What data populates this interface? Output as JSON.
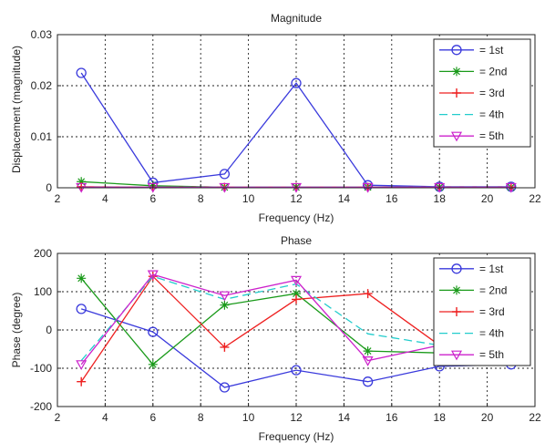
{
  "chart_data": [
    {
      "type": "line",
      "title": "Magnitude",
      "xlabel": "Frequency (Hz)",
      "ylabel": "Displacement (magnitude)",
      "xlim": [
        2,
        22
      ],
      "ylim": [
        0,
        0.03
      ],
      "xticks": [
        2,
        4,
        6,
        8,
        10,
        12,
        14,
        16,
        18,
        20,
        22
      ],
      "yticks": [
        0,
        0.01,
        0.02,
        0.03
      ],
      "xtick_labels": [
        "2",
        "4",
        "6",
        "8",
        "10",
        "12",
        "14",
        "16",
        "18",
        "20",
        "22"
      ],
      "ytick_labels": [
        "0",
        "0.01",
        "0.02",
        "0.03"
      ],
      "grid": true,
      "legend_position": "top-right",
      "series": [
        {
          "name": "= 1st",
          "color": "#3a3adc",
          "marker": "circle",
          "dash": "",
          "x": [
            3,
            6,
            9,
            12,
            15,
            18,
            21
          ],
          "y": [
            0.0225,
            0.001,
            0.0027,
            0.0205,
            0.0005,
            0.0002,
            0.0002
          ]
        },
        {
          "name": "= 2nd",
          "color": "#1a9a1a",
          "marker": "star",
          "dash": "",
          "x": [
            3,
            6,
            9,
            12,
            15,
            18,
            21
          ],
          "y": [
            0.0012,
            0.0004,
            0.0001,
            0.0001,
            0.0001,
            0.0001,
            0.0001
          ]
        },
        {
          "name": "= 3rd",
          "color": "#ee2020",
          "marker": "plus",
          "dash": "",
          "x": [
            3,
            6,
            9,
            12,
            15,
            18,
            21
          ],
          "y": [
            0.0002,
            0.0001,
            0.0001,
            0.0001,
            0.0001,
            0.0001,
            0.0001
          ]
        },
        {
          "name": "= 4th",
          "color": "#22cccc",
          "marker": "none",
          "dash": "9,5",
          "x": [
            3,
            6,
            9,
            12,
            15,
            18,
            21
          ],
          "y": [
            0.0001,
            0.0001,
            0.0001,
            0.0001,
            0.0001,
            0.0001,
            0.0001
          ]
        },
        {
          "name": "= 5th",
          "color": "#cc22cc",
          "marker": "triangle-down",
          "dash": "",
          "x": [
            3,
            6,
            9,
            12,
            15,
            18,
            21
          ],
          "y": [
            0.0001,
            0.0001,
            0.0001,
            0.0001,
            0.0001,
            0.0001,
            0.0001
          ]
        }
      ]
    },
    {
      "type": "line",
      "title": "Phase",
      "xlabel": "Frequency (Hz)",
      "ylabel": "Phase (degree)",
      "xlim": [
        2,
        22
      ],
      "ylim": [
        -200,
        200
      ],
      "xticks": [
        2,
        4,
        6,
        8,
        10,
        12,
        14,
        16,
        18,
        20,
        22
      ],
      "yticks": [
        -200,
        -100,
        0,
        100,
        200
      ],
      "xtick_labels": [
        "2",
        "4",
        "6",
        "8",
        "10",
        "12",
        "14",
        "16",
        "18",
        "20",
        "22"
      ],
      "ytick_labels": [
        "-200",
        "-100",
        "0",
        "100",
        "200"
      ],
      "grid": true,
      "legend_position": "top-right",
      "series": [
        {
          "name": "= 1st",
          "color": "#3a3adc",
          "marker": "circle",
          "dash": "",
          "x": [
            3,
            6,
            9,
            12,
            15,
            18,
            21
          ],
          "y": [
            55,
            -5,
            -150,
            -105,
            -135,
            -95,
            -90
          ]
        },
        {
          "name": "= 2nd",
          "color": "#1a9a1a",
          "marker": "star",
          "dash": "",
          "x": [
            3,
            6,
            9,
            12,
            15,
            18,
            21
          ],
          "y": [
            135,
            -90,
            65,
            95,
            -55,
            -60,
            -60
          ]
        },
        {
          "name": "= 3rd",
          "color": "#ee2020",
          "marker": "plus",
          "dash": "",
          "x": [
            3,
            6,
            9,
            12,
            15,
            18,
            21
          ],
          "y": [
            -135,
            140,
            -45,
            80,
            95,
            -40,
            -40
          ]
        },
        {
          "name": "= 4th",
          "color": "#22cccc",
          "marker": "none",
          "dash": "9,5",
          "x": [
            3,
            6,
            9,
            12,
            15,
            18,
            21
          ],
          "y": [
            -80,
            140,
            80,
            120,
            -10,
            -40,
            -40
          ]
        },
        {
          "name": "= 5th",
          "color": "#cc22cc",
          "marker": "triangle-down",
          "dash": "",
          "x": [
            3,
            6,
            9,
            12,
            15,
            18,
            21
          ],
          "y": [
            -90,
            145,
            90,
            130,
            -80,
            -40,
            -40
          ]
        }
      ]
    }
  ]
}
